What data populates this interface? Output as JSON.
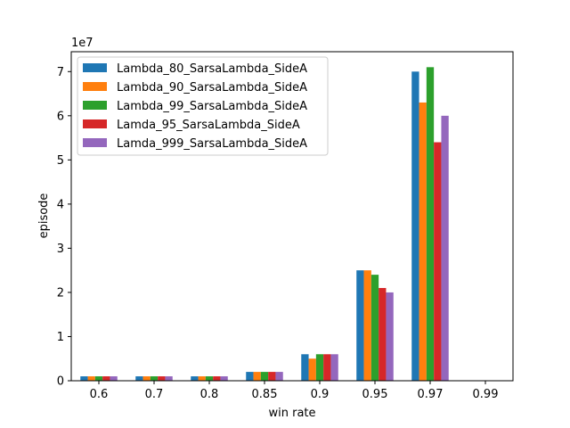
{
  "chart_data": {
    "type": "bar",
    "title": "",
    "xlabel": "win rate",
    "ylabel": "episode",
    "y_scale_label": "1e7",
    "ylim": [
      0,
      7.45
    ],
    "yticks": [
      0,
      1,
      2,
      3,
      4,
      5,
      6,
      7
    ],
    "y_unit_multiplier": 10000000,
    "categories": [
      "0.6",
      "0.7",
      "0.8",
      "0.85",
      "0.9",
      "0.95",
      "0.97",
      "0.99"
    ],
    "grid": false,
    "legend_position": "top-left",
    "series": [
      {
        "name": "Lambda_80_SarsaLambda_SideA",
        "color": "#1f77b4",
        "values": [
          0.1,
          0.1,
          0.1,
          0.2,
          0.6,
          2.5,
          7.0,
          0
        ]
      },
      {
        "name": "Lambda_90_SarsaLambda_SideA",
        "color": "#ff7f0e",
        "values": [
          0.1,
          0.1,
          0.1,
          0.2,
          0.5,
          2.5,
          6.3,
          0
        ]
      },
      {
        "name": "Lambda_99_SarsaLambda_SideA",
        "color": "#2ca02c",
        "values": [
          0.1,
          0.1,
          0.1,
          0.2,
          0.6,
          2.4,
          7.1,
          0
        ]
      },
      {
        "name": "Lamda_95_SarsaLambda_SideA",
        "color": "#d62728",
        "values": [
          0.1,
          0.1,
          0.1,
          0.2,
          0.6,
          2.1,
          5.4,
          0
        ]
      },
      {
        "name": "Lamda_999_SarsaLambda_SideA",
        "color": "#9467bd",
        "values": [
          0.1,
          0.1,
          0.1,
          0.2,
          0.6,
          2.0,
          6.0,
          0
        ]
      }
    ]
  }
}
